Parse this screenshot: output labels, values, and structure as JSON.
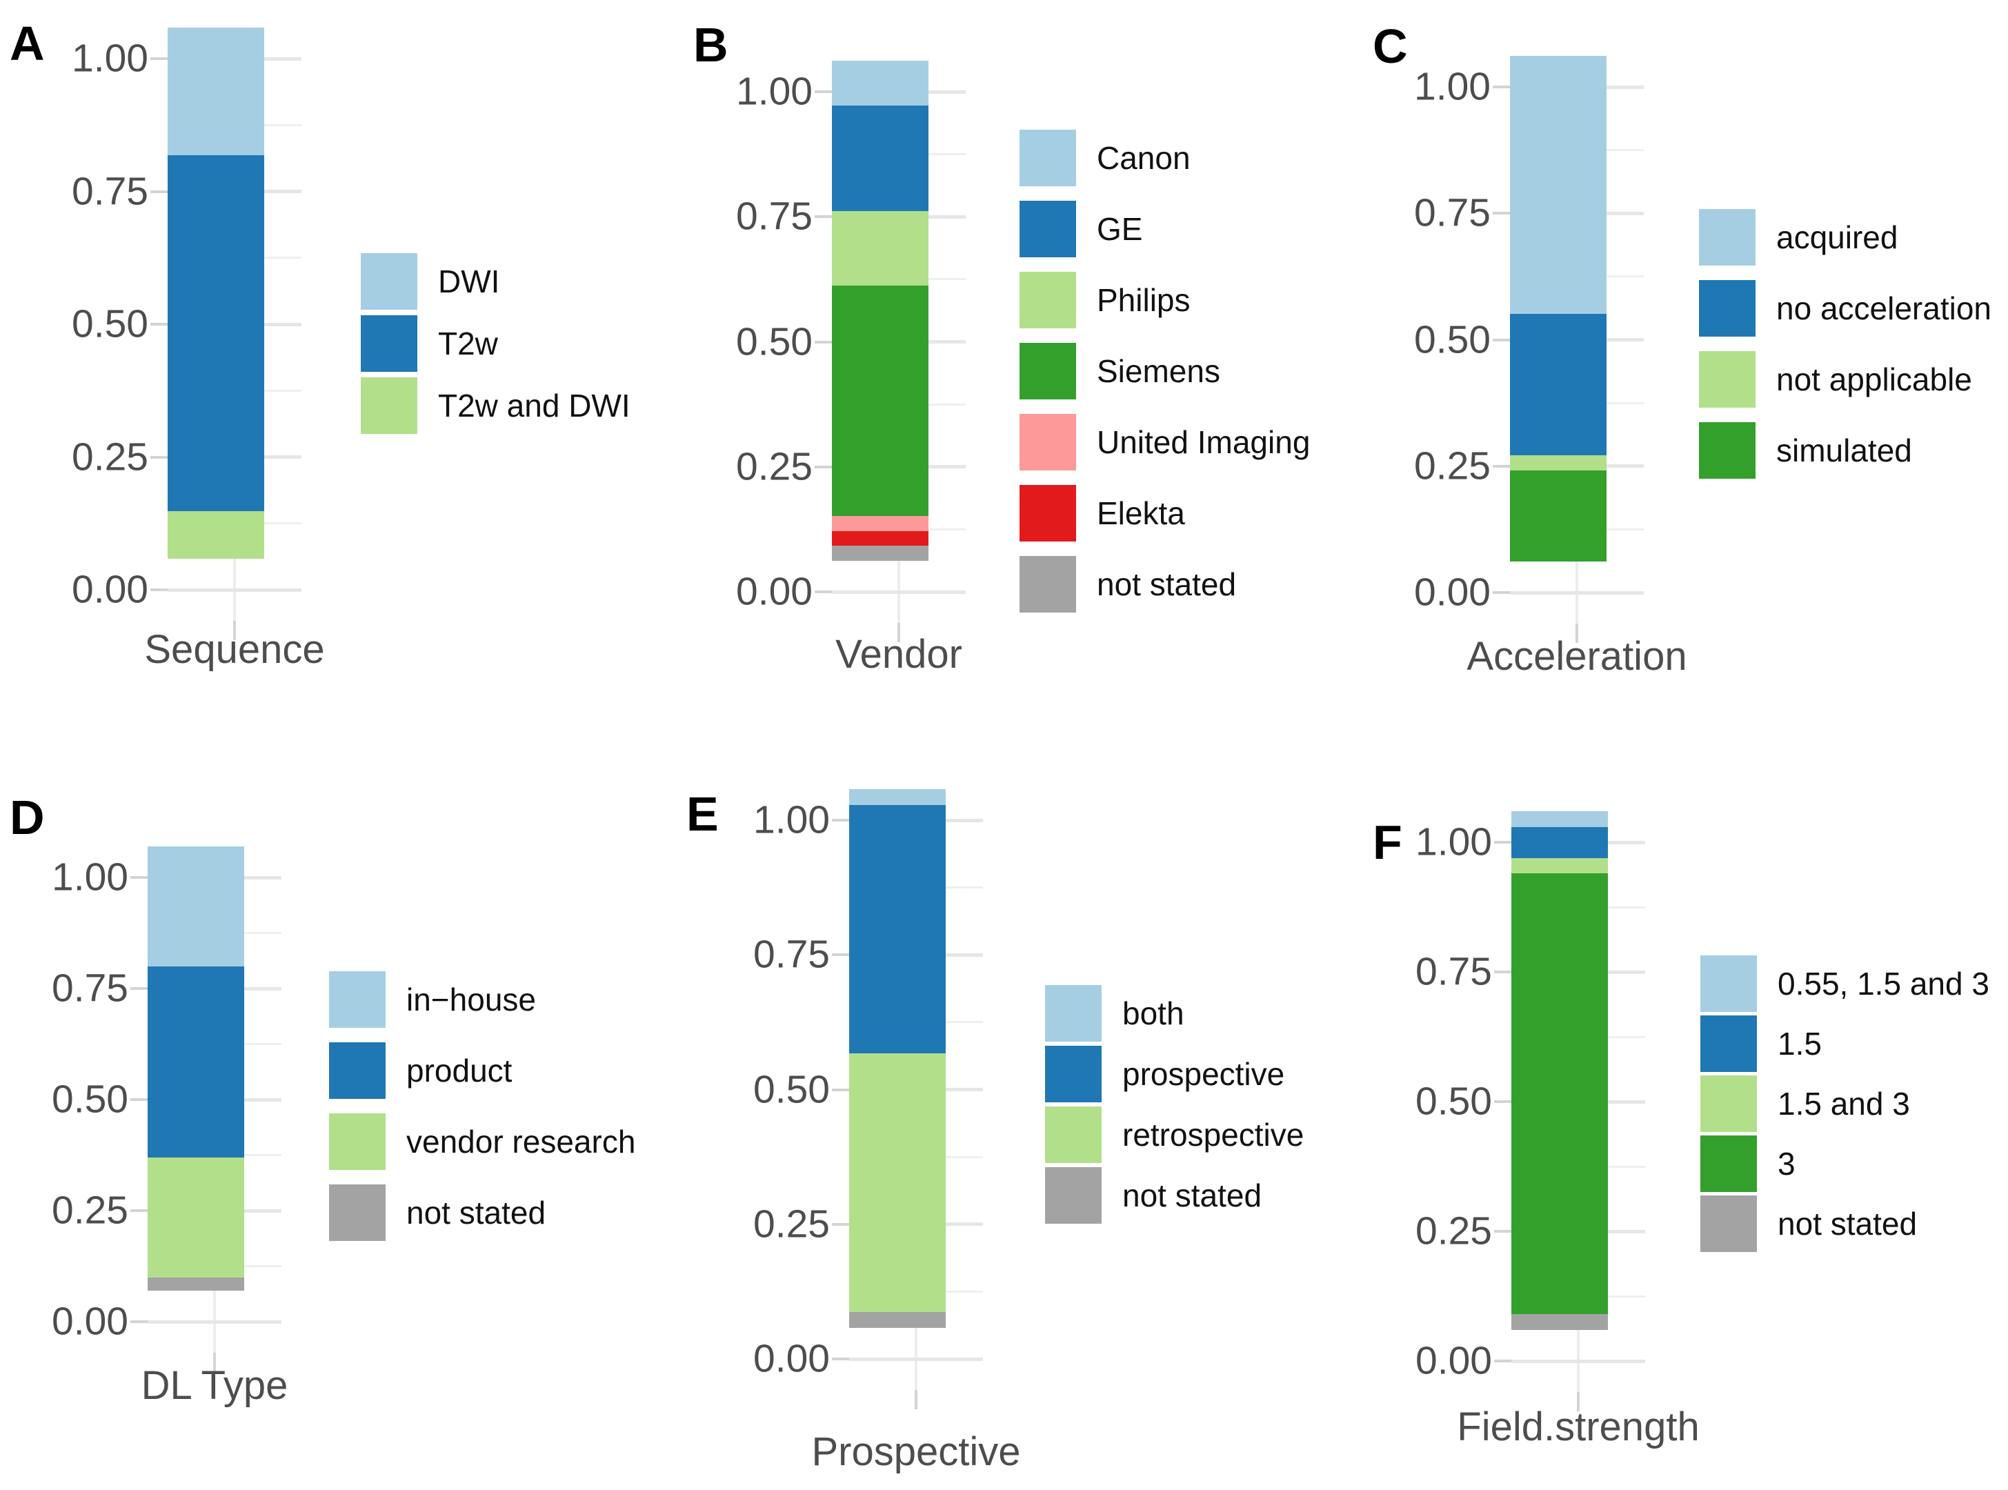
{
  "figure": {
    "background": "#ffffff",
    "text_color_axis": "#4d4d4d",
    "panel_letters": [
      "A",
      "B",
      "C",
      "D",
      "E",
      "F"
    ]
  },
  "palette": {
    "light_blue": "#a6cee3",
    "blue": "#1f78b4",
    "light_green": "#b2df8a",
    "green": "#33a02c",
    "pink": "#fb9a99",
    "red": "#e31a1c",
    "gray": "#a3a3a3"
  },
  "chart_data": [
    {
      "type": "bar",
      "panel": "A",
      "stacked": true,
      "title": "",
      "xlabel": "Sequence",
      "ylabel": "",
      "categories": [
        "Sequence"
      ],
      "ylim": [
        0,
        1
      ],
      "yticks": [
        1.0,
        0.75,
        0.5,
        0.25,
        0.0
      ],
      "ytick_labels": [
        "1.00",
        "0.75",
        "0.50",
        "0.25",
        "0.00"
      ],
      "grid": true,
      "legend_position": "right",
      "series_order": "top-to-bottom",
      "series": [
        {
          "name": "DWI",
          "color": "#a6cee3",
          "values": [
            0.24
          ]
        },
        {
          "name": "T2w",
          "color": "#1f78b4",
          "values": [
            0.67
          ]
        },
        {
          "name": "T2w and DWI",
          "color": "#b2df8a",
          "values": [
            0.09
          ]
        }
      ]
    },
    {
      "type": "bar",
      "panel": "B",
      "stacked": true,
      "title": "",
      "xlabel": "Vendor",
      "ylabel": "",
      "categories": [
        "Vendor"
      ],
      "ylim": [
        0,
        1
      ],
      "yticks": [
        1.0,
        0.75,
        0.5,
        0.25,
        0.0
      ],
      "ytick_labels": [
        "1.00",
        "0.75",
        "0.50",
        "0.25",
        "0.00"
      ],
      "grid": true,
      "legend_position": "right",
      "series_order": "top-to-bottom",
      "series": [
        {
          "name": "Canon",
          "color": "#a6cee3",
          "values": [
            0.09
          ]
        },
        {
          "name": "GE",
          "color": "#1f78b4",
          "values": [
            0.21
          ]
        },
        {
          "name": "Philips",
          "color": "#b2df8a",
          "values": [
            0.15
          ]
        },
        {
          "name": "Siemens",
          "color": "#33a02c",
          "values": [
            0.46
          ]
        },
        {
          "name": "United Imaging",
          "color": "#fb9a99",
          "values": [
            0.03
          ]
        },
        {
          "name": "Elekta",
          "color": "#e31a1c",
          "values": [
            0.03
          ]
        },
        {
          "name": "not stated",
          "color": "#a3a3a3",
          "values": [
            0.03
          ]
        }
      ]
    },
    {
      "type": "bar",
      "panel": "C",
      "stacked": true,
      "title": "",
      "xlabel": "Acceleration",
      "ylabel": "",
      "categories": [
        "Acceleration"
      ],
      "ylim": [
        0,
        1
      ],
      "yticks": [
        1.0,
        0.75,
        0.5,
        0.25,
        0.0
      ],
      "ytick_labels": [
        "1.00",
        "0.75",
        "0.50",
        "0.25",
        "0.00"
      ],
      "grid": true,
      "legend_position": "right",
      "series_order": "top-to-bottom",
      "series": [
        {
          "name": "acquired",
          "color": "#a6cee3",
          "values": [
            0.51
          ]
        },
        {
          "name": "no acceleration",
          "color": "#1f78b4",
          "values": [
            0.28
          ]
        },
        {
          "name": "not applicable",
          "color": "#b2df8a",
          "values": [
            0.03
          ]
        },
        {
          "name": "simulated",
          "color": "#33a02c",
          "values": [
            0.18
          ]
        }
      ]
    },
    {
      "type": "bar",
      "panel": "D",
      "stacked": true,
      "title": "",
      "xlabel": "DL Type",
      "ylabel": "",
      "categories": [
        "DL Type"
      ],
      "ylim": [
        0,
        1
      ],
      "yticks": [
        1.0,
        0.75,
        0.5,
        0.25,
        0.0
      ],
      "ytick_labels": [
        "1.00",
        "0.75",
        "0.50",
        "0.25",
        "0.00"
      ],
      "grid": true,
      "legend_position": "right",
      "series_order": "top-to-bottom",
      "series": [
        {
          "name": "in−house",
          "color": "#a6cee3",
          "values": [
            0.27
          ]
        },
        {
          "name": "product",
          "color": "#1f78b4",
          "values": [
            0.43
          ]
        },
        {
          "name": "vendor research",
          "color": "#b2df8a",
          "values": [
            0.27
          ]
        },
        {
          "name": "not stated",
          "color": "#a3a3a3",
          "values": [
            0.03
          ]
        }
      ]
    },
    {
      "type": "bar",
      "panel": "E",
      "stacked": true,
      "title": "",
      "xlabel": "Prospective",
      "ylabel": "",
      "categories": [
        "Prospective"
      ],
      "ylim": [
        0,
        1
      ],
      "yticks": [
        1.0,
        0.75,
        0.5,
        0.25,
        0.0
      ],
      "ytick_labels": [
        "1.00",
        "0.75",
        "0.50",
        "0.25",
        "0.00"
      ],
      "grid": true,
      "legend_position": "right",
      "series_order": "top-to-bottom",
      "series": [
        {
          "name": "both",
          "color": "#a6cee3",
          "values": [
            0.03
          ]
        },
        {
          "name": "prospective",
          "color": "#1f78b4",
          "values": [
            0.46
          ]
        },
        {
          "name": "retrospective",
          "color": "#b2df8a",
          "values": [
            0.48
          ]
        },
        {
          "name": "not stated",
          "color": "#a3a3a3",
          "values": [
            0.03
          ]
        }
      ]
    },
    {
      "type": "bar",
      "panel": "F",
      "stacked": true,
      "title": "",
      "xlabel": "Field.strength",
      "ylabel": "",
      "categories": [
        "Field.strength"
      ],
      "ylim": [
        0,
        1
      ],
      "yticks": [
        1.0,
        0.75,
        0.5,
        0.25,
        0.0
      ],
      "ytick_labels": [
        "1.00",
        "0.75",
        "0.50",
        "0.25",
        "0.00"
      ],
      "grid": true,
      "legend_position": "right",
      "series_order": "top-to-bottom",
      "series": [
        {
          "name": "0.55, 1.5 and 3",
          "color": "#a6cee3",
          "values": [
            0.03
          ]
        },
        {
          "name": "1.5",
          "color": "#1f78b4",
          "values": [
            0.06
          ]
        },
        {
          "name": "1.5 and 3",
          "color": "#b2df8a",
          "values": [
            0.03
          ]
        },
        {
          "name": "3",
          "color": "#33a02c",
          "values": [
            0.85
          ]
        },
        {
          "name": "not stated",
          "color": "#a3a3a3",
          "values": [
            0.03
          ]
        }
      ]
    }
  ]
}
